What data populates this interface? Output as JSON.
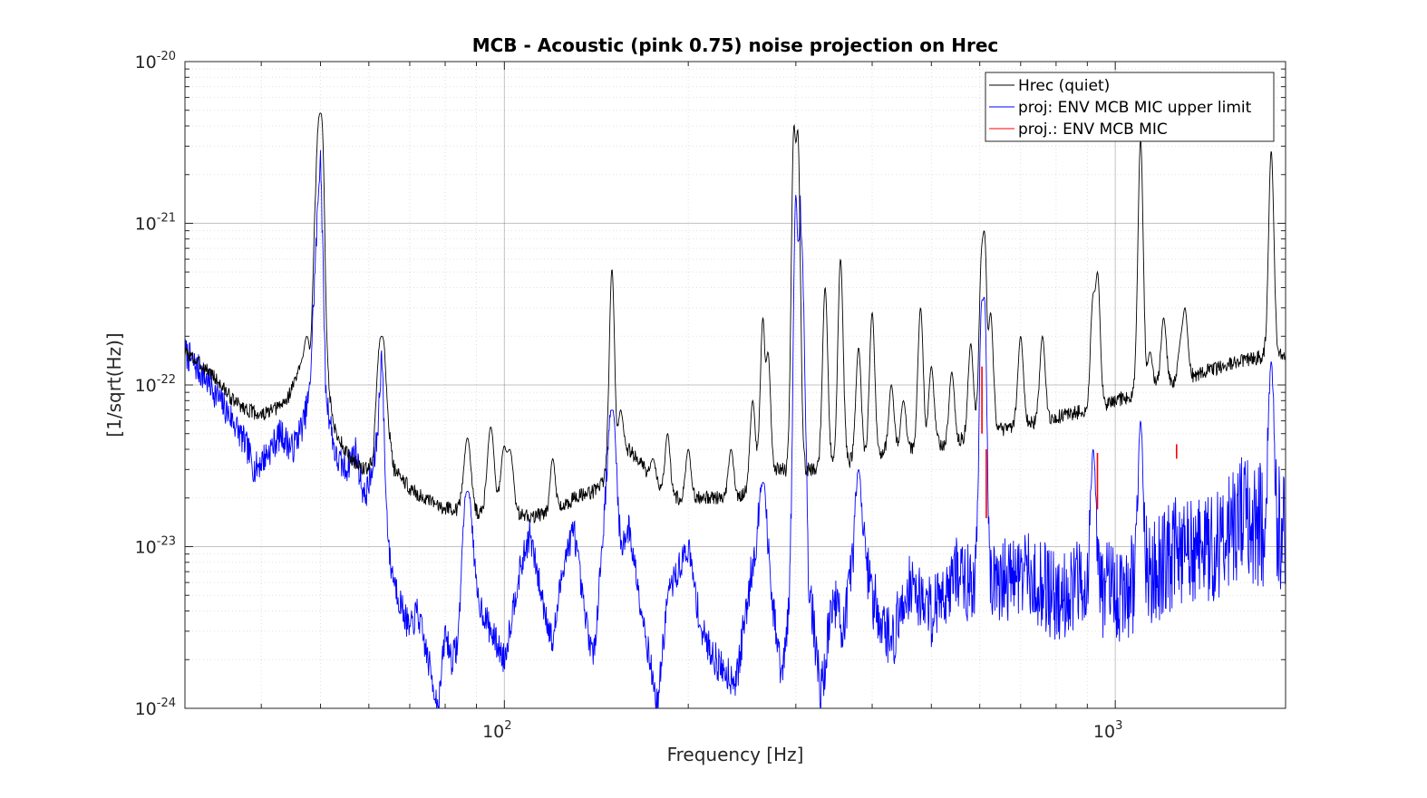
{
  "chart_data": {
    "type": "line",
    "title": "MCB - Acoustic (pink 0.75) noise projection on Hrec",
    "xlabel": "Frequency [Hz]",
    "ylabel": "[1/sqrt(Hz)]",
    "xscale": "log",
    "yscale": "log",
    "xlim": [
      30,
      1900
    ],
    "ylim": [
      1e-24,
      1e-20
    ],
    "grid": true,
    "legend_position": "top-right",
    "x_ticks": [
      {
        "value": 100,
        "base": "10",
        "exp": "2"
      },
      {
        "value": 1000,
        "base": "10",
        "exp": "3"
      }
    ],
    "y_ticks": [
      {
        "value": 1e-24,
        "base": "10",
        "exp": "-24"
      },
      {
        "value": 1e-23,
        "base": "10",
        "exp": "-23"
      },
      {
        "value": 1e-22,
        "base": "10",
        "exp": "-22"
      },
      {
        "value": 1e-21,
        "base": "10",
        "exp": "-21"
      },
      {
        "value": 1e-20,
        "base": "10",
        "exp": "-20"
      }
    ],
    "series": [
      {
        "name": "Hrec (quiet)",
        "color": "#000000",
        "base": [
          [
            30,
            1.6e-22
          ],
          [
            33,
            1.2e-22
          ],
          [
            36,
            8e-23
          ],
          [
            38,
            7e-23
          ],
          [
            40,
            6.5e-23
          ],
          [
            42,
            7e-23
          ],
          [
            44,
            8e-23
          ],
          [
            46,
            1.2e-22
          ],
          [
            48,
            1e-22
          ],
          [
            50,
            4.8e-21
          ],
          [
            51,
            1e-22
          ],
          [
            53,
            5e-23
          ],
          [
            56,
            3.5e-23
          ],
          [
            59,
            3e-23
          ],
          [
            61,
            3.3e-23
          ],
          [
            63,
            2e-22
          ],
          [
            64,
            6e-23
          ],
          [
            66,
            3e-23
          ],
          [
            70,
            2.3e-23
          ],
          [
            75,
            1.9e-23
          ],
          [
            80,
            1.75e-23
          ],
          [
            85,
            1.7e-23
          ],
          [
            90,
            1.6e-23
          ],
          [
            95,
            1.6e-23
          ],
          [
            100,
            1.6e-23
          ],
          [
            110,
            1.55e-23
          ],
          [
            120,
            1.6e-23
          ],
          [
            130,
            2e-23
          ],
          [
            140,
            2.2e-23
          ],
          [
            150,
            3e-23
          ],
          [
            160,
            4e-23
          ],
          [
            170,
            3e-23
          ],
          [
            185,
            2e-23
          ],
          [
            200,
            2e-23
          ],
          [
            220,
            2e-23
          ],
          [
            240,
            2e-23
          ],
          [
            260,
            2.5e-23
          ],
          [
            280,
            3e-23
          ],
          [
            300,
            3e-23
          ],
          [
            320,
            3e-23
          ],
          [
            340,
            3.2e-23
          ],
          [
            380,
            3.5e-23
          ],
          [
            420,
            3.8e-23
          ],
          [
            460,
            4e-23
          ],
          [
            500,
            4.2e-23
          ],
          [
            550,
            4.5e-23
          ],
          [
            600,
            5e-23
          ],
          [
            650,
            5.3e-23
          ],
          [
            700,
            5.7e-23
          ],
          [
            800,
            6.3e-23
          ],
          [
            900,
            7e-23
          ],
          [
            1000,
            8e-23
          ],
          [
            1100,
            9e-23
          ],
          [
            1200,
            1e-22
          ],
          [
            1300,
            1.1e-22
          ],
          [
            1400,
            1.2e-22
          ],
          [
            1500,
            1.3e-22
          ],
          [
            1600,
            1.4e-22
          ],
          [
            1750,
            1.5e-22
          ],
          [
            1900,
            1.55e-22
          ]
        ],
        "peaks": [
          [
            47.5,
            2e-22
          ],
          [
            50,
            4.8e-21
          ],
          [
            63,
            2e-22
          ],
          [
            87,
            4.7e-23
          ],
          [
            95,
            5.5e-23
          ],
          [
            100,
            4.2e-23
          ],
          [
            102,
            4e-23
          ],
          [
            120,
            3.5e-23
          ],
          [
            150,
            5.2e-22
          ],
          [
            155,
            7e-23
          ],
          [
            175,
            3.5e-23
          ],
          [
            185,
            5e-23
          ],
          [
            200,
            4e-23
          ],
          [
            235,
            4e-23
          ],
          [
            255,
            8e-23
          ],
          [
            265,
            2.6e-22
          ],
          [
            270,
            1.6e-22
          ],
          [
            298,
            4.1e-21
          ],
          [
            302,
            3.8e-21
          ],
          [
            335,
            4e-22
          ],
          [
            355,
            6e-22
          ],
          [
            380,
            1.7e-22
          ],
          [
            400,
            2.8e-22
          ],
          [
            430,
            1e-22
          ],
          [
            450,
            8e-23
          ],
          [
            480,
            3e-22
          ],
          [
            500,
            1.3e-22
          ],
          [
            540,
            1.2e-22
          ],
          [
            580,
            1.8e-22
          ],
          [
            605,
            4.8e-22
          ],
          [
            610,
            9e-22
          ],
          [
            625,
            2.8e-22
          ],
          [
            700,
            2e-22
          ],
          [
            760,
            2e-22
          ],
          [
            920,
            3.3e-22
          ],
          [
            935,
            5e-22
          ],
          [
            1100,
            3.3e-21
          ],
          [
            1140,
            1.6e-22
          ],
          [
            1200,
            2.6e-22
          ],
          [
            1280,
            1.7e-22
          ],
          [
            1300,
            3e-22
          ],
          [
            1800,
            2.8e-21
          ]
        ]
      },
      {
        "name": "proj: ENV MCB MIC upper limit",
        "color": "#0000ff",
        "base": [
          [
            30,
            1.6e-22
          ],
          [
            33,
            1e-22
          ],
          [
            35,
            7e-23
          ],
          [
            36,
            6e-23
          ],
          [
            38,
            4e-23
          ],
          [
            39,
            3e-23
          ],
          [
            41,
            3.8e-23
          ],
          [
            43,
            5e-23
          ],
          [
            45,
            4e-23
          ],
          [
            47,
            6e-23
          ],
          [
            48,
            9e-23
          ],
          [
            50,
            3e-21
          ],
          [
            51,
            9e-23
          ],
          [
            53,
            3.5e-23
          ],
          [
            55,
            3e-23
          ],
          [
            57,
            4e-23
          ],
          [
            59,
            2e-23
          ],
          [
            61,
            3e-23
          ],
          [
            62,
            5e-23
          ],
          [
            63,
            1.7e-22
          ],
          [
            64,
            2e-23
          ],
          [
            65,
            8e-24
          ],
          [
            67,
            5e-24
          ],
          [
            70,
            3e-24
          ],
          [
            72,
            4e-24
          ],
          [
            75,
            2e-24
          ],
          [
            78,
            1e-24
          ],
          [
            80,
            3e-24
          ],
          [
            82,
            2e-24
          ],
          [
            84,
            2.5e-24
          ],
          [
            87,
            2e-23
          ],
          [
            90,
            5e-24
          ],
          [
            95,
            3e-24
          ],
          [
            100,
            2e-24
          ],
          [
            105,
            6e-24
          ],
          [
            110,
            1.2e-23
          ],
          [
            115,
            5e-24
          ],
          [
            120,
            2.5e-24
          ],
          [
            125,
            8e-24
          ],
          [
            130,
            1.3e-23
          ],
          [
            135,
            4e-24
          ],
          [
            140,
            2e-24
          ],
          [
            150,
            7e-23
          ],
          [
            155,
            1e-23
          ],
          [
            160,
            1.3e-23
          ],
          [
            170,
            3e-24
          ],
          [
            178,
            1e-24
          ],
          [
            185,
            5e-24
          ],
          [
            200,
            1e-23
          ],
          [
            210,
            3e-24
          ],
          [
            225,
            1.8e-24
          ],
          [
            240,
            1.5e-24
          ],
          [
            255,
            8e-24
          ],
          [
            265,
            2e-23
          ],
          [
            275,
            4e-24
          ],
          [
            285,
            1.5e-24
          ],
          [
            300,
            1e-23
          ],
          [
            305,
            1.5e-21
          ],
          [
            315,
            6e-24
          ],
          [
            330,
            1.2e-24
          ],
          [
            345,
            5e-24
          ],
          [
            360,
            3e-24
          ],
          [
            380,
            1.5e-23
          ],
          [
            400,
            5e-24
          ],
          [
            430,
            2.5e-24
          ],
          [
            460,
            6e-24
          ],
          [
            500,
            4e-24
          ],
          [
            550,
            7e-24
          ],
          [
            600,
            5e-24
          ],
          [
            650,
            6e-24
          ],
          [
            700,
            7e-24
          ],
          [
            800,
            5e-24
          ],
          [
            900,
            6e-24
          ],
          [
            1000,
            5e-24
          ],
          [
            1100,
            6e-24
          ],
          [
            1200,
            8e-24
          ],
          [
            1300,
            1e-23
          ],
          [
            1400,
            9e-24
          ],
          [
            1500,
            1.2e-23
          ],
          [
            1600,
            1.5e-23
          ],
          [
            1700,
            1.4e-23
          ],
          [
            1800,
            1.2e-23
          ],
          [
            1900,
            1.3e-23
          ]
        ],
        "peaks": [
          [
            87,
            2.2e-23
          ],
          [
            150,
            7e-23
          ],
          [
            265,
            2.5e-23
          ],
          [
            300,
            1.5e-21
          ],
          [
            305,
            8e-22
          ],
          [
            380,
            3e-23
          ],
          [
            605,
            3e-22
          ],
          [
            610,
            3.5e-22
          ],
          [
            920,
            4e-23
          ],
          [
            1100,
            6e-23
          ],
          [
            1800,
            1.4e-22
          ]
        ]
      },
      {
        "name": "proj.: ENV MCB MIC",
        "color": "#ff0000",
        "segments": [
          [
            605,
            5e-23,
            1.3e-22
          ],
          [
            615,
            1.5e-23,
            4e-23
          ],
          [
            935,
            1.7e-23,
            3.8e-23
          ],
          [
            1260,
            3.5e-23,
            4.3e-23
          ]
        ]
      }
    ]
  }
}
